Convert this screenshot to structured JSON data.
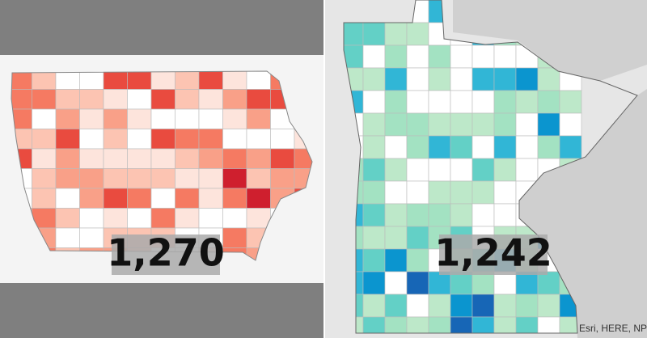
{
  "left_panel": {
    "count": "1,270"
  },
  "right_panel": {
    "count": "1,242",
    "attribution": "Esri, HERE, NP"
  }
}
